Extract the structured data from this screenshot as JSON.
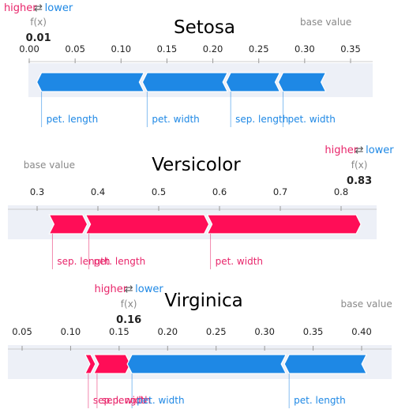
{
  "labels": {
    "higher": "higher",
    "lower": "lower",
    "arrows": "⇄",
    "fx": "f(x)",
    "base_value": "base value"
  },
  "colors": {
    "positive": "#ff0d57",
    "negative": "#1e88e5",
    "positive_text": "#e8256a",
    "negative_text": "#1e88e5",
    "band": "#edf0f7"
  },
  "chart_data": [
    {
      "type": "force",
      "title": "Setosa",
      "output_value": 0.01,
      "output_label": "0.01",
      "base_value": 0.323,
      "xlim": [
        0.0,
        0.39
      ],
      "ticks": [
        0.0,
        0.05,
        0.1,
        0.15,
        0.2,
        0.25,
        0.3,
        0.35
      ],
      "tick_labels": [
        "0.00",
        "0.05",
        "0.10",
        "0.15",
        "0.20",
        "0.25",
        "0.30",
        "0.35"
      ],
      "segments": [
        {
          "feature": "pet. length",
          "sign": "negative",
          "from": 0.01,
          "to": 0.125
        },
        {
          "feature": "pet. width",
          "sign": "negative",
          "from": 0.125,
          "to": 0.216
        },
        {
          "feature": "sep. length",
          "sign": "negative",
          "from": 0.216,
          "to": 0.273
        },
        {
          "feature": "pet. width",
          "sign": "negative",
          "from": 0.273,
          "to": 0.323
        }
      ]
    },
    {
      "type": "force",
      "title": "Versicolor",
      "output_value": 0.83,
      "output_label": "0.83",
      "base_value": 0.32,
      "xlim": [
        0.25,
        0.87
      ],
      "ticks": [
        0.3,
        0.4,
        0.5,
        0.6,
        0.7,
        0.8
      ],
      "tick_labels": [
        "0.3",
        "0.4",
        "0.5",
        "0.6",
        "0.7",
        "0.8"
      ],
      "segments": [
        {
          "feature": "sep. length",
          "sign": "positive",
          "from": 0.32,
          "to": 0.38
        },
        {
          "feature": "pet. length",
          "sign": "positive",
          "from": 0.38,
          "to": 0.58
        },
        {
          "feature": "pet. width",
          "sign": "positive",
          "from": 0.58,
          "to": 0.83
        }
      ]
    },
    {
      "type": "force",
      "title": "Virginica",
      "output_value": 0.16,
      "output_label": "0.16",
      "base_value": 0.405,
      "xlim": [
        0.03,
        0.425
      ],
      "ticks": [
        0.05,
        0.1,
        0.15,
        0.2,
        0.25,
        0.3,
        0.35,
        0.4
      ],
      "tick_labels": [
        "0.05",
        "0.10",
        "0.15",
        "0.20",
        "0.25",
        "0.30",
        "0.35",
        "0.40"
      ],
      "segments": [
        {
          "feature": "sep. length",
          "sign": "positive",
          "from": 0.115,
          "to": 0.124
        },
        {
          "feature": "sep. width",
          "sign": "positive",
          "from": 0.124,
          "to": 0.16
        },
        {
          "feature": "pet. width",
          "sign": "negative",
          "from": 0.16,
          "to": 0.322
        },
        {
          "feature": "pet. length",
          "sign": "negative",
          "from": 0.322,
          "to": 0.405
        }
      ]
    }
  ]
}
